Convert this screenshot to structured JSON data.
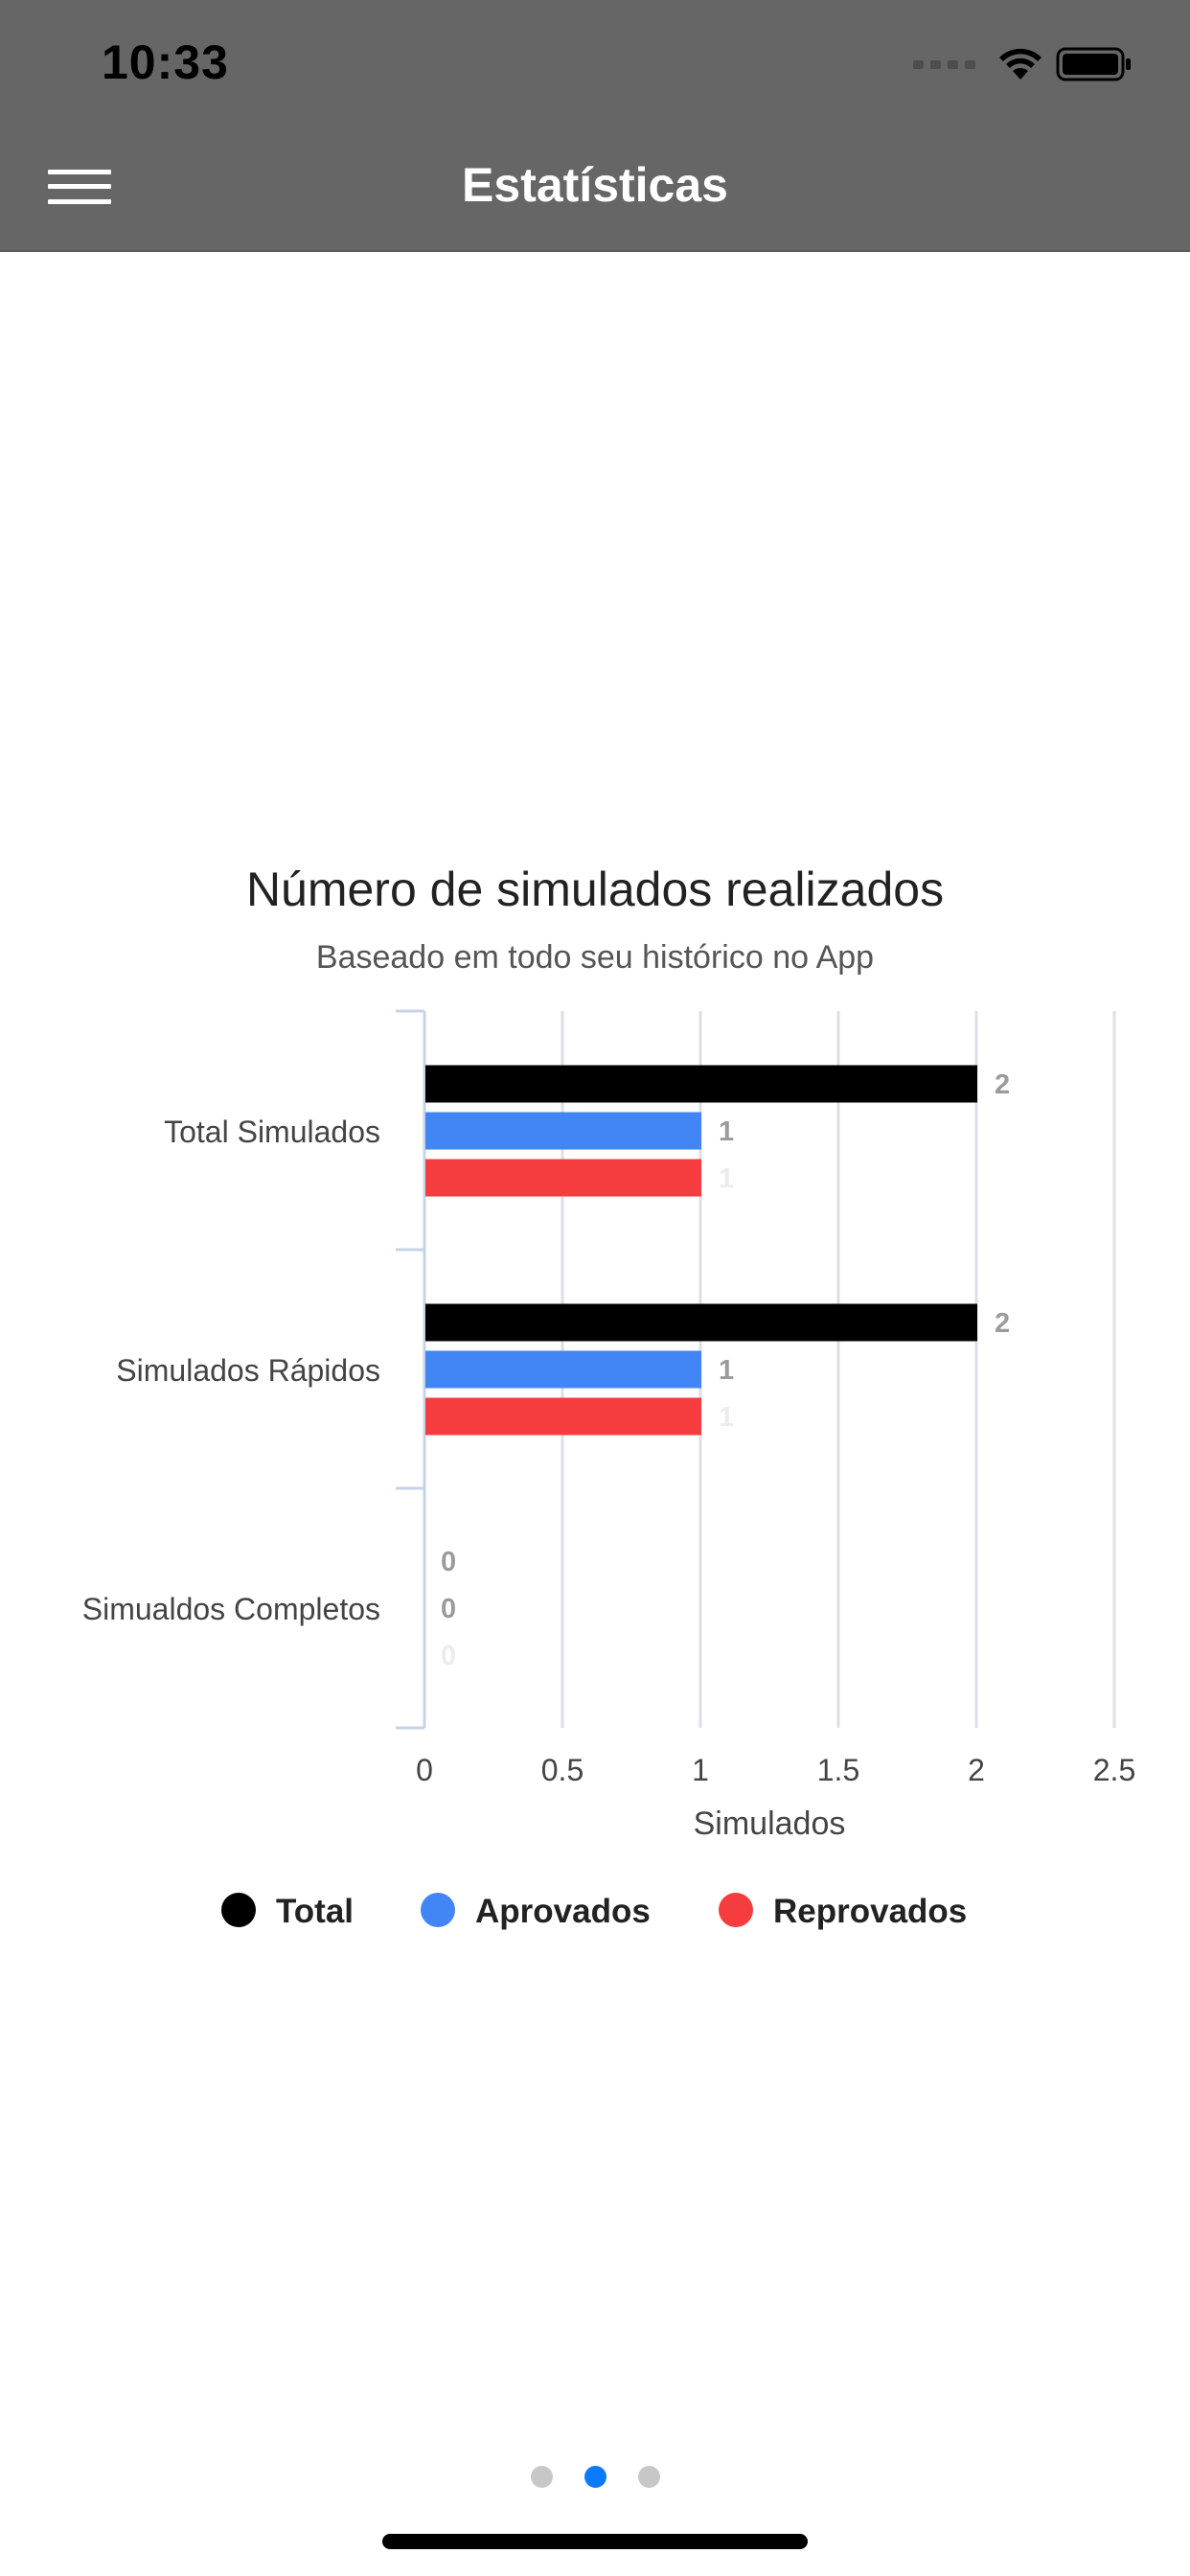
{
  "status_bar": {
    "time": "10:33",
    "icons": [
      "cellular-signal-icon",
      "wifi-icon",
      "battery-icon"
    ]
  },
  "header": {
    "title": "Estatísticas",
    "menu_icon": "hamburger-menu-icon",
    "background": "#666666"
  },
  "chart_data": {
    "type": "bar",
    "orientation": "horizontal",
    "title": "Número de simulados realizados",
    "subtitle": "Baseado em todo seu histórico no App",
    "categories": [
      "Total Simulados",
      "Simulados Rápidos",
      "Simualdos Completos"
    ],
    "series": [
      {
        "name": "Total",
        "color": "#000000",
        "values": [
          2,
          2,
          0
        ]
      },
      {
        "name": "Aprovados",
        "color": "#4286f5",
        "values": [
          1,
          1,
          0
        ]
      },
      {
        "name": "Reprovados",
        "color": "#f53d3f",
        "values": [
          1,
          1,
          0
        ]
      }
    ],
    "xlabel": "Simulados",
    "xlim": [
      0,
      2.5
    ],
    "xticks": [
      "0",
      "0.5",
      "1",
      "1.5",
      "2",
      "2.5"
    ],
    "grid": true,
    "legend_position": "bottom"
  },
  "pagination": {
    "pages": 3,
    "active_index": 1
  }
}
